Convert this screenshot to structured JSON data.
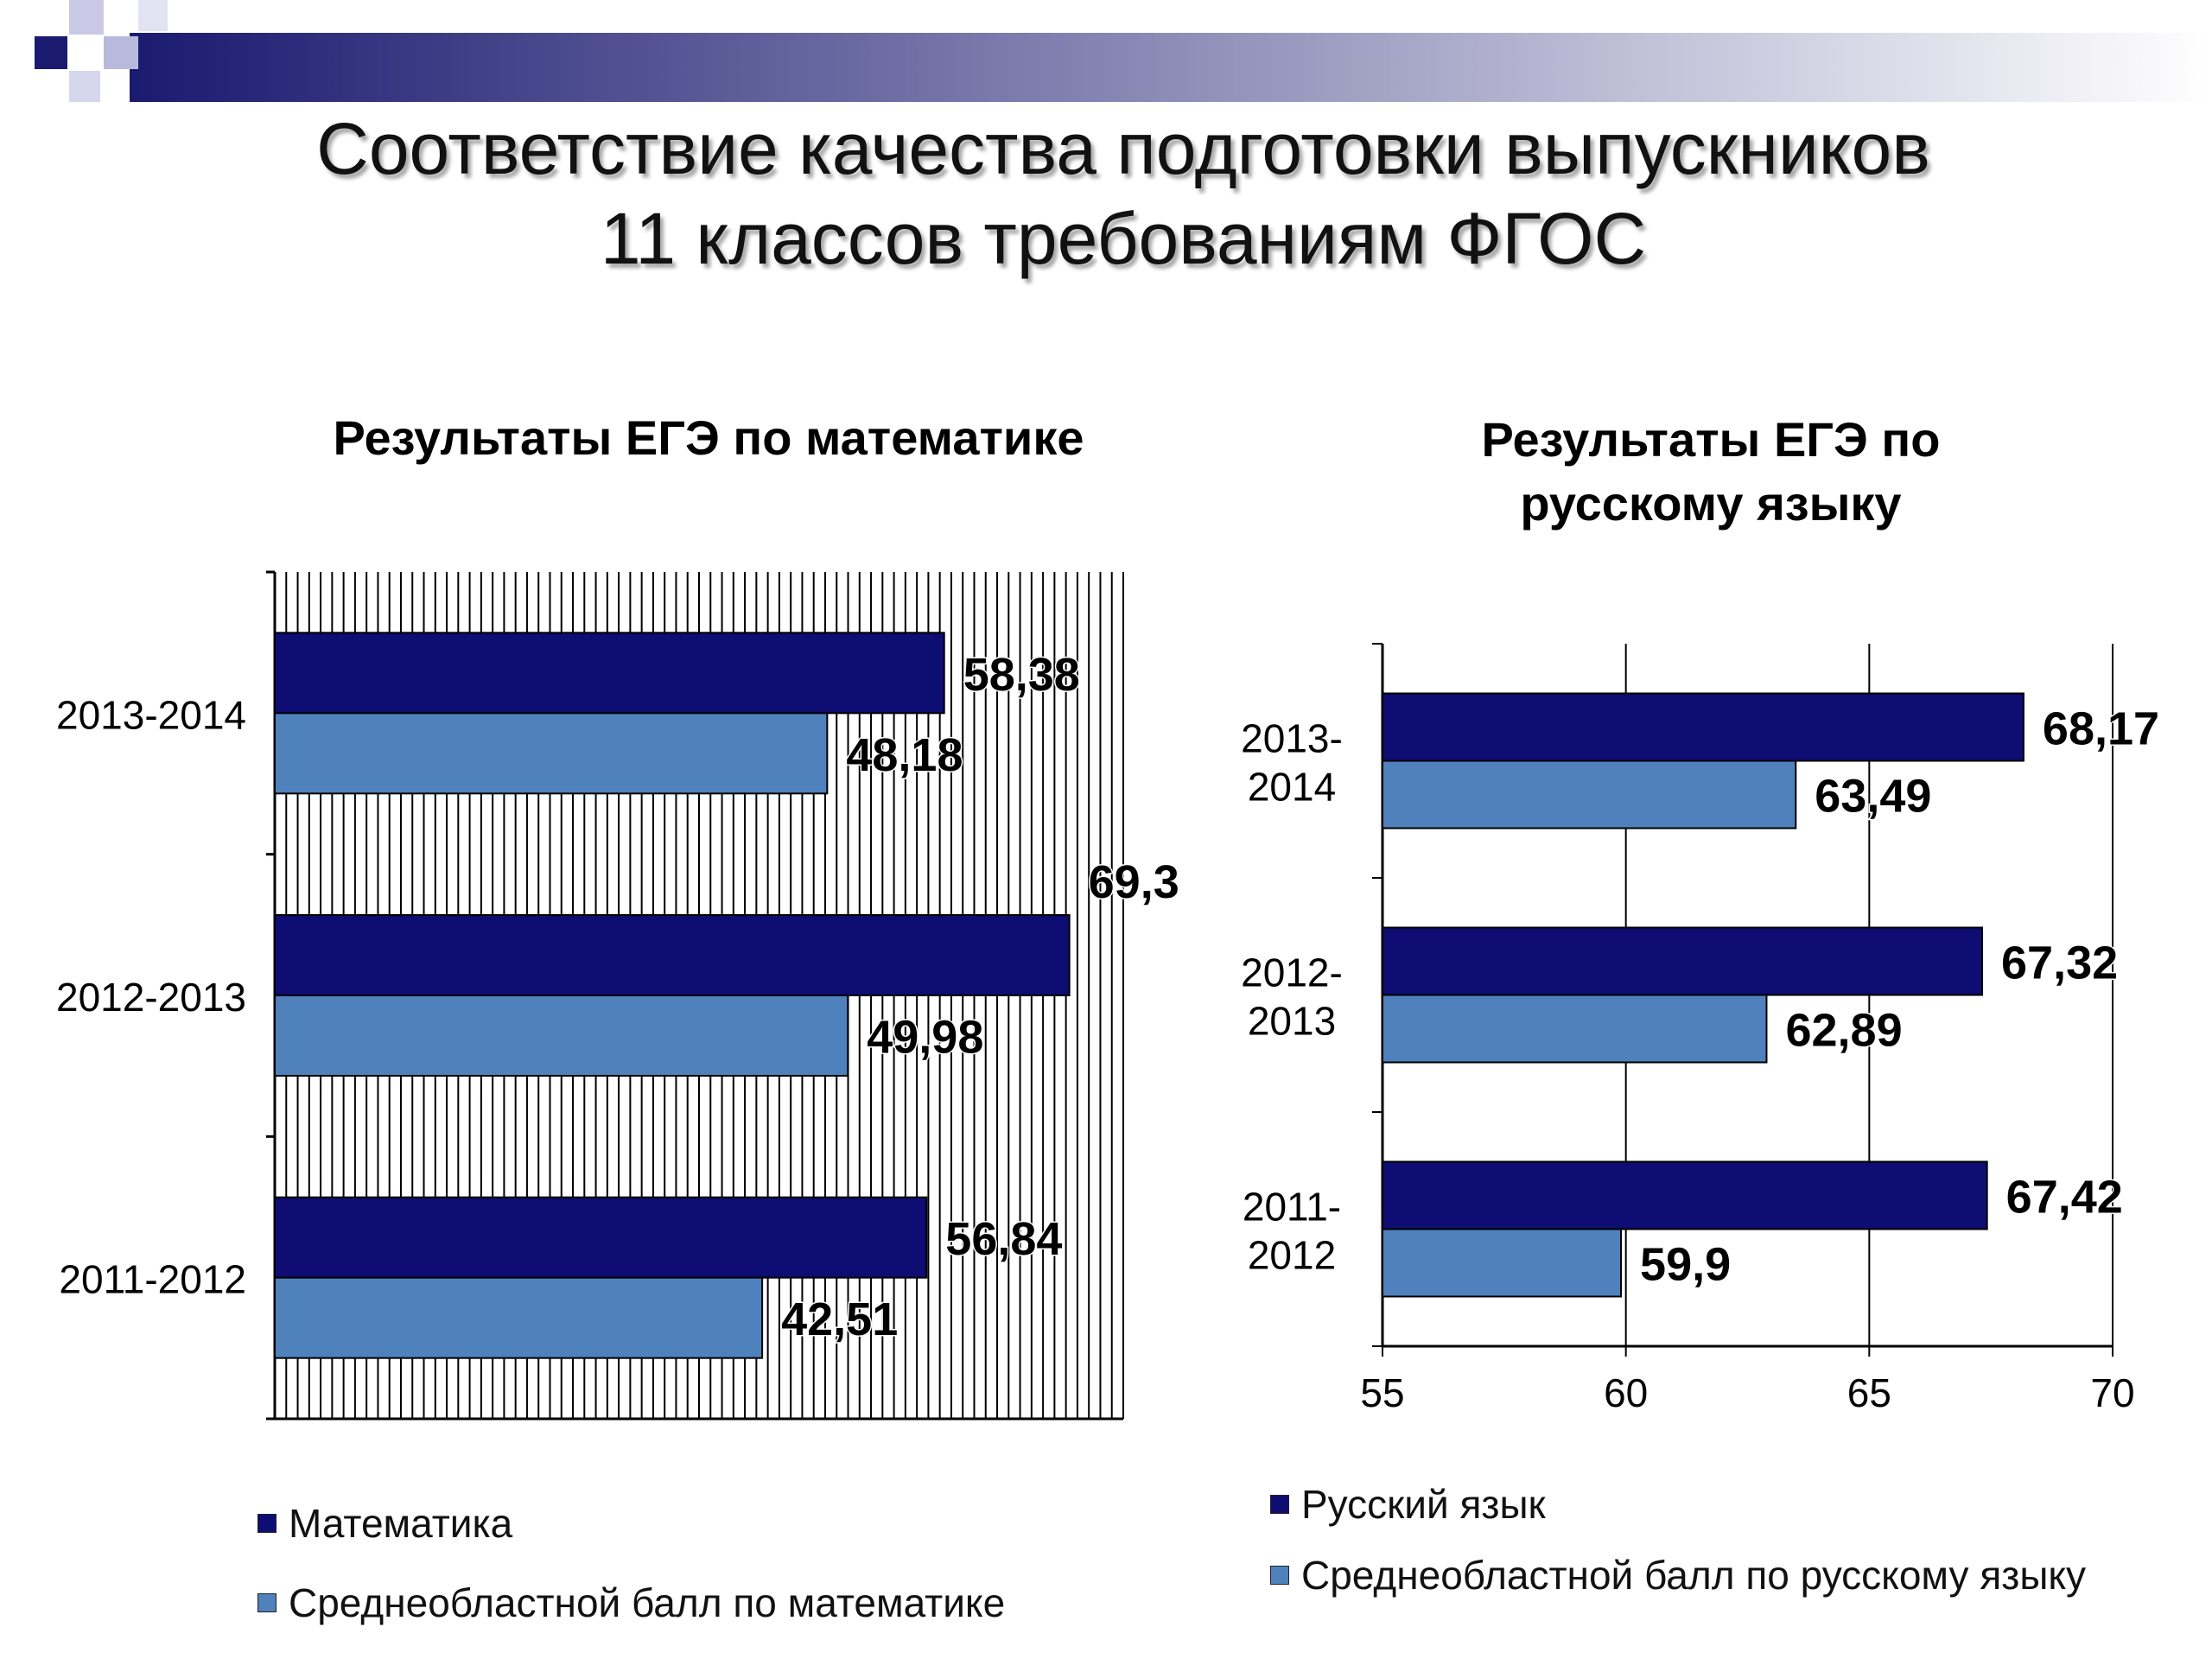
{
  "slide": {
    "title_lines": [
      "Соответствие качества подготовки выпускников",
      "11 классов требованиям ФГОС"
    ]
  },
  "colors": {
    "dark_series": "#0d0d73",
    "light_series": "#4f81bd",
    "header_band_start": "#1a1a70",
    "header_band_end": "#ffffff"
  },
  "chart_data": [
    {
      "type": "bar",
      "orientation": "horizontal",
      "title": "Результаты  ЕГЭ по математике",
      "categories": [
        "2013-2014",
        "2012-2013",
        "2011-2012"
      ],
      "series": [
        {
          "name": "Математика",
          "values": [
            58.38,
            69.3,
            56.84
          ],
          "labels": [
            "58,38",
            "69,3",
            "56,84"
          ]
        },
        {
          "name": "Среднеобластной балл по математике",
          "values": [
            48.18,
            49.98,
            42.51
          ],
          "labels": [
            "48,18",
            "49,98",
            "42,51"
          ]
        }
      ],
      "xlim": [
        0,
        74
      ],
      "grid": true,
      "x_tick_labels_shown": false,
      "legend_position": "bottom-left"
    },
    {
      "type": "bar",
      "orientation": "horizontal",
      "title": "Результаты  ЕГЭ по русскому языку",
      "title_lines": [
        "Результаты  ЕГЭ по",
        "русскому языку"
      ],
      "categories": [
        "2013-2014",
        "2012-2013",
        "2011-2012"
      ],
      "category_lines": [
        [
          "2013-",
          "2014"
        ],
        [
          "2012-",
          "2013"
        ],
        [
          "2011-",
          "2012"
        ]
      ],
      "series": [
        {
          "name": "Русский язык",
          "values": [
            68.17,
            67.32,
            67.42
          ],
          "labels": [
            "68,17",
            "67,32",
            "67,42"
          ]
        },
        {
          "name": "Среднеобластной балл по русскому языку",
          "values": [
            63.49,
            62.89,
            59.9
          ],
          "labels": [
            "63,49",
            "62,89",
            "59,9"
          ]
        }
      ],
      "xlim": [
        55,
        70
      ],
      "x_ticks": [
        55,
        60,
        65,
        70
      ],
      "x_tick_labels": [
        "55",
        "60",
        "65",
        "70"
      ],
      "grid": true,
      "legend_position": "bottom-left"
    }
  ]
}
